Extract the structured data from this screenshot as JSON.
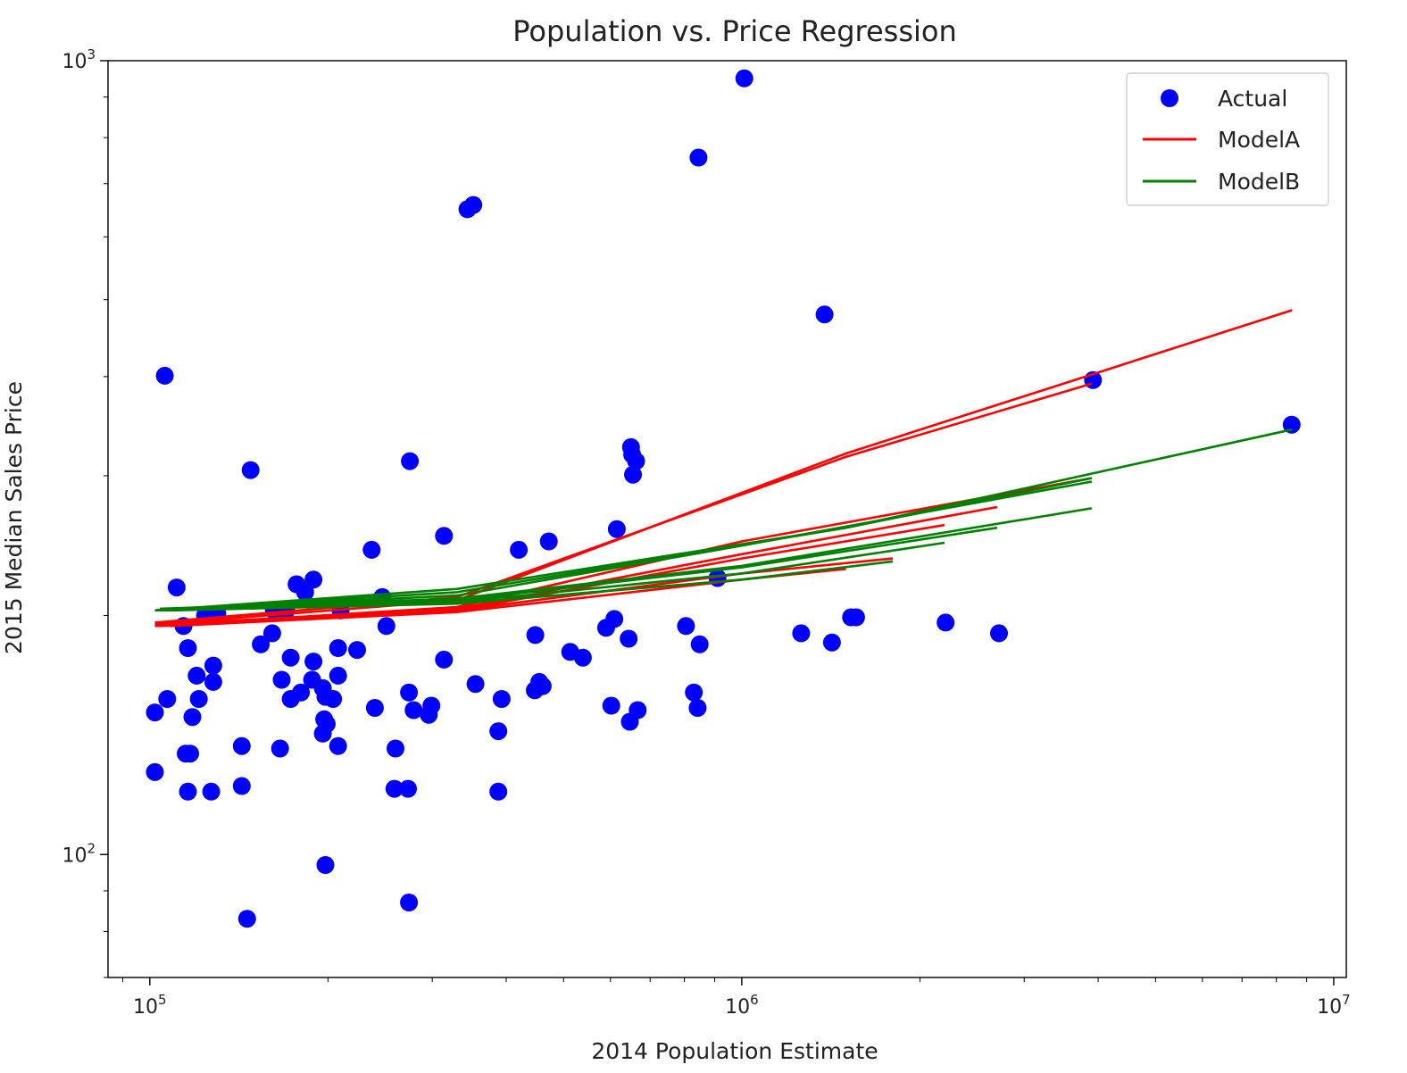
{
  "chart_data": {
    "type": "scatter",
    "title": "Population vs. Price Regression",
    "xlabel": "2014 Population Estimate",
    "ylabel": "2015 Median Sales Price",
    "xscale": "log",
    "yscale": "log",
    "xlim": [
      85000,
      10500000
    ],
    "ylim": [
      70,
      1000
    ],
    "grid": false,
    "legend_position": "top-right",
    "x_ticks": [
      {
        "value": 100000,
        "base": "10",
        "exp": "5"
      },
      {
        "value": 1000000,
        "base": "10",
        "exp": "6"
      },
      {
        "value": 10000000,
        "base": "10",
        "exp": "7"
      }
    ],
    "y_ticks": [
      {
        "value": 100,
        "base": "10",
        "exp": "2"
      },
      {
        "value": 1000,
        "base": "10",
        "exp": "3"
      }
    ],
    "legend": [
      {
        "label": "Actual",
        "kind": "marker",
        "color": "#0000ff"
      },
      {
        "label": "ModelA",
        "kind": "line",
        "color": "#ff0000"
      },
      {
        "label": "ModelB",
        "kind": "line",
        "color": "#008000"
      }
    ],
    "series": [
      {
        "name": "Actual",
        "kind": "scatter",
        "color": "#0000ff",
        "points": [
          [
            1010000,
            950
          ],
          [
            845000,
            755
          ],
          [
            344000,
            650
          ],
          [
            352000,
            658
          ],
          [
            1380000,
            479
          ],
          [
            106000,
            401
          ],
          [
            3920000,
            396
          ],
          [
            8490000,
            348
          ],
          [
            275000,
            313
          ],
          [
            148000,
            305
          ],
          [
            650000,
            326
          ],
          [
            653000,
            319
          ],
          [
            663000,
            313
          ],
          [
            655000,
            301
          ],
          [
            314000,
            252
          ],
          [
            420000,
            242
          ],
          [
            472000,
            248
          ],
          [
            615000,
            257
          ],
          [
            237000,
            242
          ],
          [
            910000,
            223
          ],
          [
            111000,
            217
          ],
          [
            189000,
            222
          ],
          [
            177000,
            219
          ],
          [
            183000,
            214
          ],
          [
            247000,
            211
          ],
          [
            162000,
            203
          ],
          [
            170000,
            203
          ],
          [
            210000,
            203
          ],
          [
            124000,
            200
          ],
          [
            130000,
            201
          ],
          [
            114000,
            194
          ],
          [
            251000,
            194
          ],
          [
            609000,
            198
          ],
          [
            1530000,
            199
          ],
          [
            1560000,
            199
          ],
          [
            2210000,
            196
          ],
          [
            161000,
            190
          ],
          [
            590000,
            193
          ],
          [
            1260000,
            190
          ],
          [
            805000,
            194
          ],
          [
            2720000,
            190
          ],
          [
            448000,
            189
          ],
          [
            644000,
            187
          ],
          [
            154000,
            184
          ],
          [
            1420000,
            185
          ],
          [
            116000,
            182
          ],
          [
            208000,
            182
          ],
          [
            224000,
            181
          ],
          [
            849000,
            184
          ],
          [
            513000,
            180
          ],
          [
            539000,
            177
          ],
          [
            173000,
            177
          ],
          [
            189000,
            175
          ],
          [
            314000,
            176
          ],
          [
            128000,
            173
          ],
          [
            120000,
            168
          ],
          [
            208000,
            168
          ],
          [
            167000,
            166
          ],
          [
            188000,
            166
          ],
          [
            128000,
            165
          ],
          [
            355000,
            164
          ],
          [
            455000,
            165
          ],
          [
            461000,
            163
          ],
          [
            196000,
            162
          ],
          [
            180000,
            160
          ],
          [
            274000,
            160
          ],
          [
            447000,
            161
          ],
          [
            830000,
            160
          ],
          [
            198000,
            158
          ],
          [
            204000,
            157
          ],
          [
            107000,
            157
          ],
          [
            121000,
            157
          ],
          [
            173000,
            157
          ],
          [
            393000,
            157
          ],
          [
            299000,
            154
          ],
          [
            602000,
            154
          ],
          [
            240000,
            153
          ],
          [
            279000,
            152
          ],
          [
            667000,
            152
          ],
          [
            842000,
            153
          ],
          [
            296000,
            150
          ],
          [
            102000,
            151
          ],
          [
            118000,
            149
          ],
          [
            197000,
            148
          ],
          [
            647000,
            147
          ],
          [
            199000,
            146
          ],
          [
            388000,
            143
          ],
          [
            196000,
            142
          ],
          [
            208000,
            137
          ],
          [
            143000,
            137
          ],
          [
            166000,
            136
          ],
          [
            260000,
            136
          ],
          [
            115000,
            134
          ],
          [
            117000,
            134
          ],
          [
            102000,
            127
          ],
          [
            273000,
            121
          ],
          [
            143000,
            122
          ],
          [
            259000,
            121
          ],
          [
            116000,
            120
          ],
          [
            127000,
            120
          ],
          [
            388000,
            120
          ],
          [
            198000,
            97
          ],
          [
            274000,
            87
          ],
          [
            146000,
            83
          ]
        ]
      },
      {
        "name": "ModelA",
        "kind": "line",
        "color": "#ff0000",
        "segments": [
          [
            [
              102000,
              195
            ],
            [
              330000,
              209
            ],
            [
              1500000,
              320
            ],
            [
              8500000,
              485
            ]
          ],
          [
            [
              102000,
              196
            ],
            [
              330000,
              211
            ],
            [
              1500000,
              317
            ],
            [
              3900000,
              392
            ]
          ],
          [
            [
              102000,
              194
            ],
            [
              330000,
              205
            ],
            [
              1000000,
              248
            ],
            [
              3900000,
              298
            ]
          ],
          [
            [
              104000,
              195
            ],
            [
              330000,
              204
            ],
            [
              1000000,
              239
            ],
            [
              2700000,
              274
            ]
          ],
          [
            [
              104000,
              194
            ],
            [
              330000,
              203
            ],
            [
              1000000,
              236
            ],
            [
              2200000,
              260
            ]
          ],
          [
            [
              106000,
              195
            ],
            [
              330000,
              203
            ],
            [
              1000000,
              226
            ],
            [
              1800000,
              236
            ]
          ],
          [
            [
              108000,
              194
            ],
            [
              330000,
              202
            ],
            [
              1000000,
              222
            ],
            [
              1500000,
              229
            ]
          ]
        ]
      },
      {
        "name": "ModelB",
        "kind": "line",
        "color": "#008000",
        "segments": [
          [
            [
              102000,
              203
            ],
            [
              330000,
              216
            ],
            [
              1500000,
              258
            ],
            [
              8500000,
              343
            ]
          ],
          [
            [
              102000,
              203
            ],
            [
              330000,
              214
            ],
            [
              1500000,
              258
            ],
            [
              3900000,
              298
            ]
          ],
          [
            [
              102000,
              203
            ],
            [
              330000,
              212
            ],
            [
              1000000,
              245
            ],
            [
              3900000,
              295
            ]
          ],
          [
            [
              104000,
              204
            ],
            [
              330000,
              210
            ],
            [
              1000000,
              231
            ],
            [
              3900000,
              273
            ]
          ],
          [
            [
              104000,
              203
            ],
            [
              330000,
              209
            ],
            [
              1000000,
              230
            ],
            [
              2700000,
              258
            ]
          ],
          [
            [
              106000,
              203
            ],
            [
              330000,
              208
            ],
            [
              1000000,
              226
            ],
            [
              2200000,
              247
            ]
          ],
          [
            [
              108000,
              203
            ],
            [
              330000,
              207
            ],
            [
              1000000,
              222
            ],
            [
              1800000,
              234
            ]
          ]
        ]
      }
    ]
  }
}
